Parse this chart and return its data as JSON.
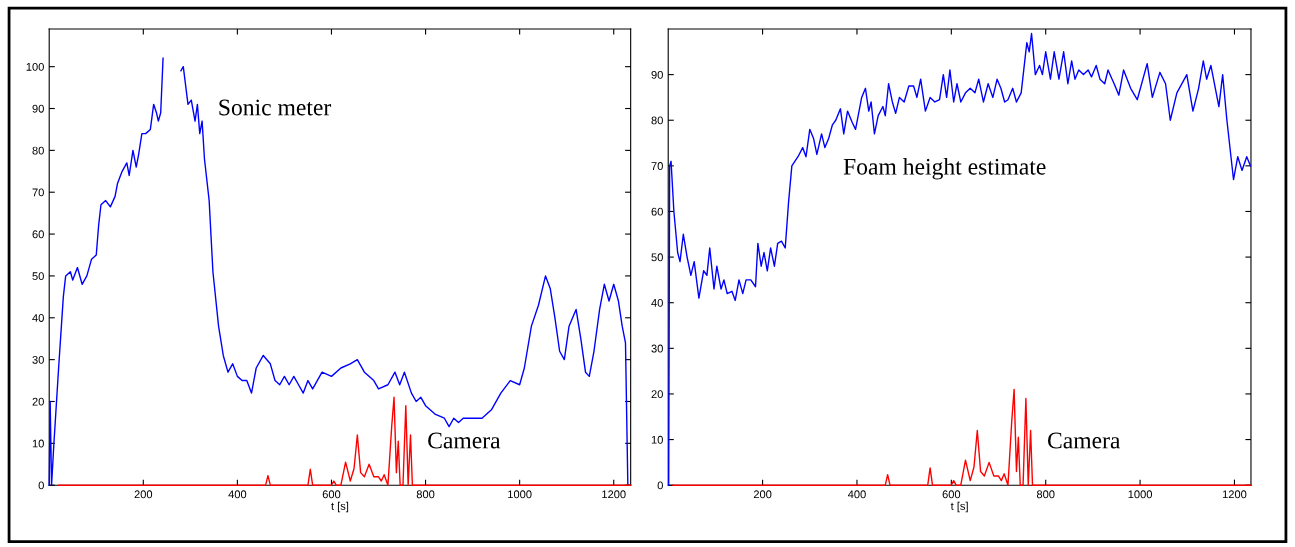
{
  "chart_data": [
    {
      "type": "line",
      "xlabel": "t [s]",
      "xlim": [
        0,
        1236
      ],
      "ylim": [
        0,
        109
      ],
      "xticks": [
        200,
        400,
        600,
        800,
        1000,
        1200
      ],
      "yticks": [
        0,
        10,
        20,
        30,
        40,
        50,
        60,
        70,
        80,
        90,
        100
      ],
      "grid": false,
      "legend": false,
      "series": [
        {
          "name": "Sonic meter",
          "color": "#0000ff",
          "x": [
            0,
            2,
            5,
            10,
            20,
            30,
            35,
            45,
            50,
            60,
            70,
            80,
            90,
            100,
            105,
            110,
            120,
            130,
            140,
            145,
            155,
            165,
            170,
            178,
            185,
            190,
            197,
            205,
            215,
            222,
            228,
            232,
            237,
            242,
            250,
            270,
            280,
            285,
            295,
            302,
            310,
            315,
            320,
            325,
            330,
            340,
            348,
            360,
            370,
            380,
            390,
            400,
            410,
            420,
            430,
            440,
            455,
            470,
            480,
            490,
            500,
            510,
            520,
            530,
            540,
            550,
            560,
            580,
            600,
            620,
            640,
            655,
            670,
            690,
            700,
            720,
            735,
            745,
            755,
            770,
            780,
            790,
            800,
            820,
            840,
            850,
            860,
            870,
            880,
            900,
            920,
            940,
            960,
            980,
            1000,
            1010,
            1025,
            1040,
            1055,
            1065,
            1075,
            1085,
            1095,
            1105,
            1120,
            1130,
            1140,
            1148,
            1158,
            1170,
            1180,
            1190,
            1200,
            1210,
            1218,
            1225,
            1230
          ],
          "values": [
            0,
            20,
            0,
            10,
            28,
            45,
            50,
            51,
            49,
            52,
            48,
            50,
            54,
            55,
            62,
            67,
            68,
            66.5,
            69,
            72,
            75,
            77,
            74,
            80,
            76,
            79,
            84,
            84,
            85,
            91,
            89,
            87,
            89,
            102,
            null,
            null,
            99,
            100,
            91,
            92,
            87,
            91,
            84,
            87,
            78,
            68,
            51,
            38,
            31,
            27,
            29,
            26,
            25,
            25,
            22,
            28,
            31,
            29,
            25,
            24,
            26,
            24,
            26,
            24,
            22,
            25,
            23,
            27,
            26,
            28,
            29,
            30,
            27,
            25,
            23,
            24,
            27,
            24,
            27,
            22,
            20,
            21,
            19,
            17,
            16,
            14,
            16,
            15,
            16,
            16,
            16,
            18,
            22,
            25,
            24,
            28,
            38,
            43,
            50,
            47,
            40,
            32,
            30,
            38,
            42,
            35,
            27,
            26,
            32,
            42,
            48,
            44,
            48,
            44,
            38,
            34,
            0
          ]
        },
        {
          "name": "Camera",
          "color": "#ff0000",
          "x": [
            20,
            460,
            465,
            470,
            550,
            555,
            560,
            600,
            605,
            610,
            620,
            630,
            640,
            648,
            655,
            662,
            670,
            680,
            690,
            700,
            706,
            712,
            720,
            728,
            733,
            738,
            742,
            746,
            752,
            758,
            763,
            768,
            772,
            1236
          ],
          "values": [
            0,
            0,
            2.3,
            0,
            0,
            3.8,
            0,
            0,
            1,
            0,
            0,
            5.5,
            1,
            4,
            12,
            3,
            2,
            5,
            2,
            2,
            1,
            2.5,
            0,
            14,
            21,
            3,
            10.5,
            0,
            0,
            19,
            0,
            12,
            0,
            0
          ]
        }
      ]
    },
    {
      "type": "line",
      "xlabel": "t [s]",
      "xlim": [
        0,
        1235
      ],
      "ylim": [
        0,
        100
      ],
      "xticks": [
        200,
        400,
        600,
        800,
        1000,
        1200
      ],
      "yticks": [
        0,
        10,
        20,
        30,
        40,
        50,
        60,
        70,
        80,
        90
      ],
      "grid": false,
      "legend": false,
      "series": [
        {
          "name": "Foam height estimate",
          "color": "#0000ff",
          "x": [
            1,
            3,
            6,
            12,
            20,
            25,
            32,
            40,
            48,
            55,
            65,
            75,
            82,
            88,
            97,
            103,
            112,
            118,
            125,
            135,
            142,
            150,
            158,
            165,
            175,
            185,
            190,
            197,
            203,
            210,
            217,
            225,
            232,
            240,
            248,
            255,
            262,
            275,
            285,
            292,
            300,
            308,
            315,
            325,
            332,
            340,
            348,
            355,
            365,
            372,
            380,
            390,
            397,
            410,
            418,
            425,
            430,
            437,
            445,
            455,
            460,
            467,
            475,
            482,
            490,
            500,
            510,
            520,
            527,
            535,
            545,
            555,
            565,
            575,
            583,
            590,
            597,
            605,
            612,
            620,
            630,
            640,
            650,
            658,
            668,
            678,
            688,
            697,
            705,
            713,
            720,
            730,
            738,
            748,
            760,
            765,
            770,
            778,
            787,
            793,
            800,
            810,
            818,
            828,
            838,
            847,
            855,
            862,
            870,
            880,
            890,
            897,
            907,
            915,
            925,
            932,
            945,
            955,
            965,
            980,
            994,
            1015,
            1026,
            1042,
            1054,
            1064,
            1078,
            1099,
            1112,
            1124,
            1134,
            1141,
            1150,
            1167,
            1175,
            1184,
            1198,
            1207,
            1216,
            1226,
            1234
          ],
          "values": [
            0,
            70,
            71,
            60,
            51,
            49,
            55,
            50,
            46,
            49,
            41,
            47,
            46,
            52,
            43,
            48,
            43,
            45,
            42,
            42.5,
            40.5,
            45,
            42,
            45,
            45,
            43.5,
            53,
            48,
            51,
            47,
            52,
            48,
            53,
            53.5,
            52,
            62,
            70,
            72,
            74,
            72,
            78,
            76,
            72.5,
            77,
            74,
            76,
            79,
            80,
            82.5,
            77,
            82,
            79.5,
            78,
            85,
            87,
            82,
            84,
            77,
            81,
            83,
            81,
            88,
            84,
            81.5,
            85,
            84,
            87.5,
            87.5,
            85,
            89,
            82,
            85,
            84,
            84.5,
            90,
            85,
            91,
            84,
            88,
            84,
            86,
            87,
            86,
            89,
            84,
            88,
            85,
            89,
            87,
            84,
            84.5,
            87,
            84,
            86,
            97,
            95,
            99,
            90,
            92,
            90,
            95,
            89,
            95,
            89,
            95,
            88,
            93,
            89,
            91,
            90,
            91,
            89.5,
            92,
            89,
            88,
            91,
            88,
            85.5,
            91,
            87,
            84.5,
            92.4,
            85,
            90.5,
            88,
            80,
            86,
            90,
            82,
            87,
            93,
            89,
            92,
            83,
            90,
            80,
            67,
            72,
            69,
            72,
            70
          ]
        },
        {
          "name": "Camera",
          "color": "#ff0000",
          "x": [
            10,
            460,
            465,
            470,
            550,
            555,
            560,
            600,
            605,
            610,
            620,
            630,
            640,
            648,
            655,
            662,
            670,
            680,
            690,
            700,
            706,
            712,
            720,
            728,
            733,
            738,
            742,
            746,
            752,
            758,
            763,
            768,
            772,
            1235
          ],
          "values": [
            0,
            0,
            2.3,
            0,
            0,
            3.8,
            0,
            0,
            1,
            0,
            0,
            5.5,
            1,
            4,
            12,
            3,
            2,
            5,
            2,
            2,
            1,
            2.5,
            0,
            14,
            21,
            3,
            10.5,
            0,
            0,
            19,
            0,
            12,
            0,
            0
          ]
        }
      ]
    }
  ]
}
